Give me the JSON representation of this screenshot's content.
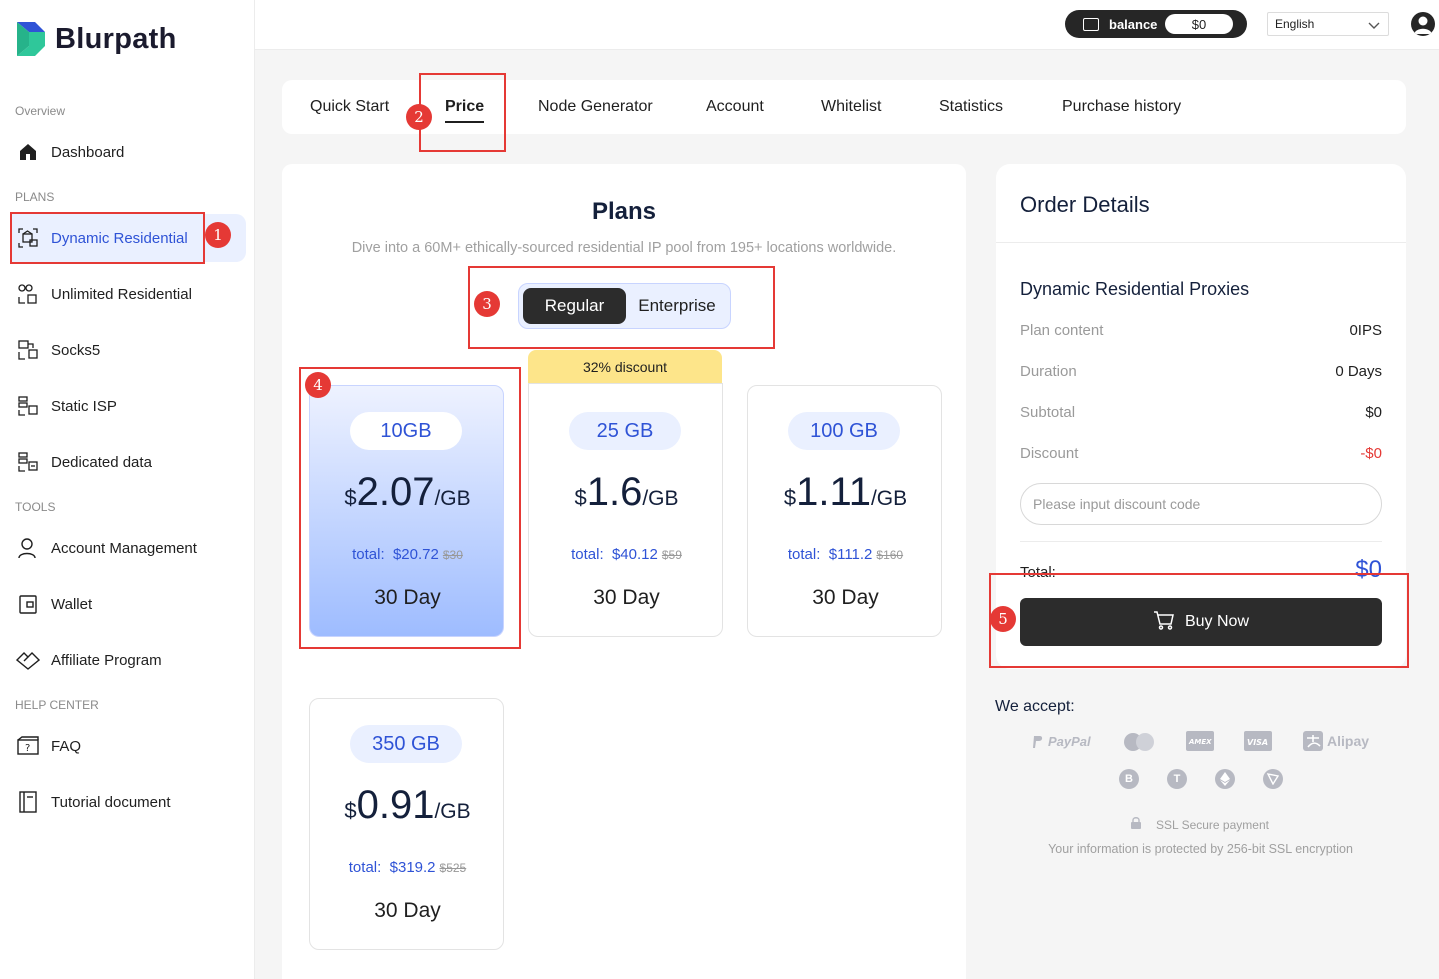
{
  "brand": {
    "name": "Blurpath"
  },
  "sidebar": {
    "section_overview": "Overview",
    "section_plans": "PLANS",
    "section_tools": "TOOLS",
    "section_help": "HELP CENTER",
    "items": [
      {
        "label": "Dashboard",
        "icon": "home-icon"
      },
      {
        "label": "Dynamic Residential",
        "icon": "residential-icon",
        "active": true
      },
      {
        "label": "Unlimited Residential",
        "icon": "unlimited-icon"
      },
      {
        "label": "Socks5",
        "icon": "socks5-icon"
      },
      {
        "label": "Static ISP",
        "icon": "static-isp-icon"
      },
      {
        "label": "Dedicated data",
        "icon": "dedicated-data-icon"
      },
      {
        "label": "Account Management",
        "icon": "user-icon"
      },
      {
        "label": "Wallet",
        "icon": "wallet-icon"
      },
      {
        "label": "Affiliate Program",
        "icon": "affiliate-icon"
      },
      {
        "label": "FAQ",
        "icon": "faq-icon"
      },
      {
        "label": "Tutorial document",
        "icon": "document-icon"
      }
    ]
  },
  "topbar": {
    "balance_label": "balance",
    "balance_value": "$0",
    "language": "English"
  },
  "tabs": [
    "Quick Start",
    "Price",
    "Node Generator",
    "Account",
    "Whitelist",
    "Statistics",
    "Purchase history"
  ],
  "active_tab": "Price",
  "plans": {
    "title": "Plans",
    "subtitle": "Dive into a 60M+ ethically-sourced residential IP pool from 195+ locations worldwide.",
    "toggle": {
      "regular": "Regular",
      "enterprise": "Enterprise",
      "selected": "Regular"
    },
    "discount_ribbon": "32% discount",
    "cards": [
      {
        "size": "10GB",
        "currency": "$",
        "price": "2.07",
        "unit": "/GB",
        "total_label": "total:",
        "total": "$20.72",
        "old": "$30",
        "duration": "30 Day",
        "selected": true
      },
      {
        "size": "25 GB",
        "currency": "$",
        "price": "1.6",
        "unit": "/GB",
        "total_label": "total:",
        "total": "$40.12",
        "old": "$59",
        "duration": "30 Day"
      },
      {
        "size": "100 GB",
        "currency": "$",
        "price": "1.11",
        "unit": "/GB",
        "total_label": "total:",
        "total": "$111.2",
        "old": "$160",
        "duration": "30 Day"
      },
      {
        "size": "350 GB",
        "currency": "$",
        "price": "0.91",
        "unit": "/GB",
        "total_label": "total:",
        "total": "$319.2",
        "old": "$525",
        "duration": "30 Day"
      }
    ]
  },
  "order": {
    "title": "Order Details",
    "product": "Dynamic Residential Proxies",
    "rows": [
      {
        "label": "Plan content",
        "value": "0IPS"
      },
      {
        "label": "Duration",
        "value": "0 Days"
      },
      {
        "label": "Subtotal",
        "value": "$0"
      },
      {
        "label": "Discount",
        "value": "-$0"
      }
    ],
    "discount_placeholder": "Please input discount code",
    "total_label": "Total:",
    "total_value": "$0",
    "buy_label": "Buy Now"
  },
  "payments": {
    "accept_title": "We accept:",
    "methods": [
      "PayPal",
      "Mastercard",
      "AMEX",
      "VISA",
      "Alipay"
    ],
    "coins": [
      "bitcoin-icon",
      "tether-icon",
      "ethereum-icon",
      "tron-icon"
    ],
    "ssl_title": "SSL Secure payment",
    "ssl_note": "Your information is protected by 256-bit SSL encryption"
  },
  "annotations": [
    "1",
    "2",
    "3",
    "4",
    "5"
  ],
  "colors": {
    "accent": "#2f53d6",
    "dark": "#2c2c2c",
    "highlight": "#e53935",
    "ribbon": "#fde58a"
  }
}
